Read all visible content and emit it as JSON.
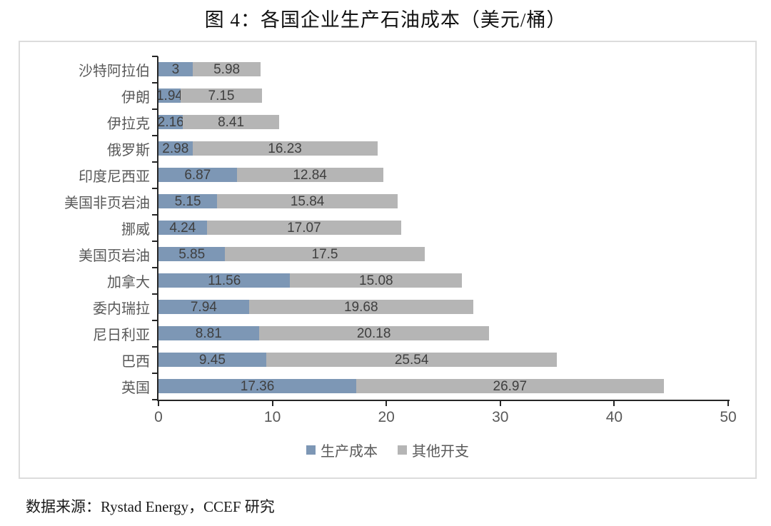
{
  "title": "图 4：各国企业生产石油成本（美元/桶）",
  "source_note": "数据来源：Rystad Energy，CCEF 研究",
  "colors": {
    "production_cost": "#7d97b5",
    "other_expense": "#b5b5b5",
    "axis": "#262626",
    "category_label": "#595959",
    "data_label": "#3f3f3f",
    "frame_border": "#dcdcdc"
  },
  "chart_data": {
    "type": "bar",
    "orientation": "horizontal",
    "stacked": true,
    "title": "图 4：各国企业生产石油成本（美元/桶）",
    "categories": [
      "沙特阿拉伯",
      "伊朗",
      "伊拉克",
      "俄罗斯",
      "印度尼西亚",
      "美国非页岩油",
      "挪威",
      "美国页岩油",
      "加拿大",
      "委内瑞拉",
      "尼日利亚",
      "巴西",
      "英国"
    ],
    "series": [
      {
        "name": "生产成本",
        "color": "#7d97b5",
        "values": [
          3,
          1.94,
          2.16,
          2.98,
          6.87,
          5.15,
          4.24,
          5.85,
          11.56,
          7.94,
          8.81,
          9.45,
          17.36
        ]
      },
      {
        "name": "其他开支",
        "color": "#b5b5b5",
        "values": [
          5.98,
          7.15,
          8.41,
          16.23,
          12.84,
          15.84,
          17.07,
          17.5,
          15.08,
          19.68,
          20.18,
          25.54,
          26.97
        ]
      }
    ],
    "xlim": [
      0,
      50
    ],
    "x_ticks": [
      0,
      10,
      20,
      30,
      40,
      50
    ],
    "grid": false,
    "legend_position": "bottom"
  }
}
